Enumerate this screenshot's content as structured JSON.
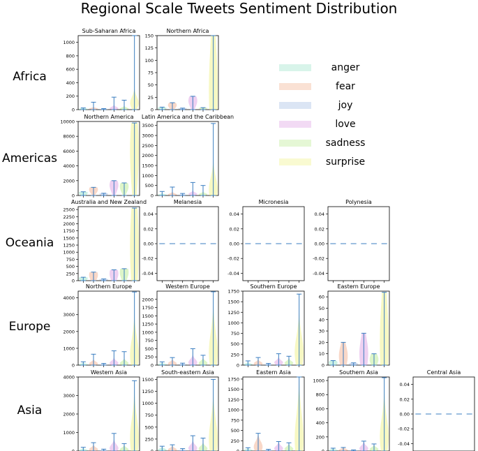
{
  "title": "Regional Scale Tweets Sentiment Distribution",
  "legend": {
    "items": [
      {
        "label": "anger",
        "color": "#8fe0c4"
      },
      {
        "label": "fear",
        "color": "#f2a985"
      },
      {
        "label": "joy",
        "color": "#99b4df"
      },
      {
        "label": "love",
        "color": "#d996e0"
      },
      {
        "label": "sadness",
        "color": "#b4e886"
      },
      {
        "label": "surprise",
        "color": "#eef07a"
      }
    ]
  },
  "row_labels": [
    "Africa",
    "Americas",
    "Oceania",
    "Europe",
    "Asia"
  ],
  "colors": {
    "whisker": "#3a7dc0",
    "violins": [
      "#8fe0c4",
      "#f2a985",
      "#99b4df",
      "#d996e0",
      "#b4e886",
      "#eef07a"
    ]
  },
  "chart_data": [
    {
      "type": "violin",
      "row": 0,
      "col": 0,
      "title": "Sub-Saharan Africa",
      "ylim": [
        0,
        1100
      ],
      "yticks": [
        0,
        200,
        400,
        600,
        800,
        1000
      ],
      "series": [
        "anger",
        "fear",
        "joy",
        "love",
        "sadness",
        "surprise"
      ],
      "max": [
        25,
        110,
        15,
        185,
        140,
        1100
      ],
      "median": [
        3,
        15,
        3,
        20,
        15,
        100
      ],
      "spread": [
        25,
        15,
        8,
        30,
        25,
        130
      ]
    },
    {
      "type": "violin",
      "row": 0,
      "col": 1,
      "title": "Northern Africa",
      "ylim": [
        0,
        150
      ],
      "yticks": [
        0,
        25,
        50,
        75,
        100,
        125,
        150
      ],
      "series": [
        "anger",
        "fear",
        "joy",
        "love",
        "sadness",
        "surprise"
      ],
      "max": [
        5,
        14,
        3,
        27,
        4,
        150
      ],
      "median": [
        3,
        9,
        2,
        18,
        3,
        40
      ],
      "spread": [
        4,
        10,
        2,
        20,
        3,
        150
      ]
    },
    {
      "type": "violin",
      "row": 1,
      "col": 0,
      "title": "Northern America",
      "ylim": [
        0,
        10000
      ],
      "yticks": [
        0,
        2000,
        4000,
        6000,
        8000,
        10000
      ],
      "series": [
        "anger",
        "fear",
        "joy",
        "love",
        "sadness",
        "surprise"
      ],
      "max": [
        500,
        1100,
        300,
        2000,
        1700,
        9800
      ],
      "median": [
        350,
        800,
        200,
        1400,
        1200,
        6000
      ],
      "spread": [
        500,
        800,
        250,
        1400,
        1200,
        8000
      ]
    },
    {
      "type": "violin",
      "row": 1,
      "col": 1,
      "title": "Latin America and the Caribbean",
      "ylim": [
        0,
        3700
      ],
      "yticks": [
        0,
        500,
        1000,
        1500,
        2000,
        2500,
        3000,
        3500
      ],
      "series": [
        "anger",
        "fear",
        "joy",
        "love",
        "sadness",
        "surprise"
      ],
      "max": [
        200,
        420,
        100,
        650,
        500,
        3600
      ],
      "median": [
        30,
        50,
        20,
        80,
        60,
        300
      ],
      "spread": [
        60,
        80,
        40,
        100,
        80,
        900
      ]
    },
    {
      "type": "violin",
      "row": 2,
      "col": 0,
      "title": "Australia and New Zealand",
      "ylim": [
        0,
        2600
      ],
      "yticks": [
        0,
        250,
        500,
        750,
        1000,
        1250,
        1500,
        1750,
        2000,
        2250,
        2500
      ],
      "series": [
        "anger",
        "fear",
        "joy",
        "love",
        "sadness",
        "surprise"
      ],
      "max": [
        120,
        300,
        60,
        380,
        420,
        2550
      ],
      "median": [
        80,
        200,
        40,
        250,
        300,
        1200
      ],
      "spread": [
        120,
        300,
        50,
        380,
        400,
        2400
      ]
    },
    {
      "type": "violin",
      "row": 2,
      "col": 1,
      "title": "Melanesia",
      "ylim": [
        -0.05,
        0.05
      ],
      "yticks": [
        -0.04,
        -0.02,
        0.0,
        0.02,
        0.04
      ],
      "series": [],
      "flat_value": 0.0
    },
    {
      "type": "violin",
      "row": 2,
      "col": 2,
      "title": "Micronesia",
      "ylim": [
        -0.05,
        0.05
      ],
      "yticks": [
        -0.04,
        -0.02,
        0.0,
        0.02,
        0.04
      ],
      "series": [],
      "flat_value": 0.0
    },
    {
      "type": "violin",
      "row": 2,
      "col": 3,
      "title": "Polynesia",
      "ylim": [
        -0.05,
        0.05
      ],
      "yticks": [
        -0.04,
        -0.02,
        0.0,
        0.02,
        0.04
      ],
      "series": [],
      "flat_value": 0.0
    },
    {
      "type": "violin",
      "row": 3,
      "col": 0,
      "title": "Northern Europe",
      "ylim": [
        0,
        4400
      ],
      "yticks": [
        0,
        1000,
        2000,
        3000,
        4000
      ],
      "series": [
        "anger",
        "fear",
        "joy",
        "love",
        "sadness",
        "surprise"
      ],
      "max": [
        200,
        650,
        100,
        850,
        800,
        4350
      ],
      "median": [
        40,
        100,
        20,
        120,
        110,
        600
      ],
      "spread": [
        80,
        150,
        40,
        200,
        180,
        1500
      ]
    },
    {
      "type": "violin",
      "row": 3,
      "col": 1,
      "title": "Western Europe",
      "ylim": [
        0,
        2250
      ],
      "yticks": [
        0,
        250,
        500,
        750,
        1000,
        1250,
        1500,
        1750,
        2000
      ],
      "series": [
        "anger",
        "fear",
        "joy",
        "love",
        "sadness",
        "surprise"
      ],
      "max": [
        100,
        230,
        60,
        500,
        300,
        2230
      ],
      "median": [
        20,
        50,
        15,
        80,
        60,
        400
      ],
      "spread": [
        40,
        80,
        20,
        150,
        100,
        900
      ]
    },
    {
      "type": "violin",
      "row": 3,
      "col": 2,
      "title": "Southern Europe",
      "ylim": [
        0,
        1750
      ],
      "yticks": [
        0,
        250,
        500,
        750,
        1000,
        1250,
        1500,
        1750
      ],
      "series": [
        "anger",
        "fear",
        "joy",
        "love",
        "sadness",
        "surprise"
      ],
      "max": [
        100,
        180,
        40,
        270,
        210,
        1680
      ],
      "median": [
        20,
        40,
        10,
        60,
        50,
        300
      ],
      "spread": [
        30,
        60,
        15,
        80,
        70,
        600
      ]
    },
    {
      "type": "violin",
      "row": 3,
      "col": 3,
      "title": "Eastern Europe",
      "ylim": [
        0,
        65
      ],
      "yticks": [
        0,
        10,
        20,
        30,
        40,
        50,
        60
      ],
      "series": [
        "anger",
        "fear",
        "joy",
        "love",
        "sadness",
        "surprise"
      ],
      "max": [
        4,
        20,
        2,
        28,
        10,
        64
      ],
      "median": [
        2,
        8,
        1,
        10,
        5,
        20
      ],
      "spread": [
        4,
        15,
        2,
        22,
        8,
        60
      ]
    },
    {
      "type": "violin",
      "row": 4,
      "col": 0,
      "title": "Western Asia",
      "ylim": [
        0,
        4000
      ],
      "yticks": [
        0,
        1000,
        2000,
        3000,
        4000
      ],
      "series": [
        "anger",
        "fear",
        "joy",
        "love",
        "sadness",
        "surprise"
      ],
      "max": [
        200,
        450,
        100,
        950,
        400,
        3800
      ],
      "median": [
        40,
        90,
        20,
        150,
        80,
        700
      ],
      "spread": [
        80,
        150,
        40,
        300,
        150,
        1600
      ]
    },
    {
      "type": "violin",
      "row": 4,
      "col": 1,
      "title": "South-eastern Asia",
      "ylim": [
        0,
        1550
      ],
      "yticks": [
        0,
        250,
        500,
        750,
        1000,
        1250,
        1500
      ],
      "series": [
        "anger",
        "fear",
        "joy",
        "love",
        "sadness",
        "surprise"
      ],
      "max": [
        100,
        130,
        50,
        320,
        270,
        1500
      ],
      "median": [
        25,
        30,
        10,
        60,
        50,
        250
      ],
      "spread": [
        40,
        50,
        20,
        100,
        80,
        600
      ]
    },
    {
      "type": "violin",
      "row": 4,
      "col": 2,
      "title": "Eastern Asia",
      "ylim": [
        0,
        1800
      ],
      "yticks": [
        0,
        250,
        500,
        750,
        1000,
        1250,
        1500,
        1750
      ],
      "series": [
        "anger",
        "fear",
        "joy",
        "love",
        "sadness",
        "surprise"
      ],
      "max": [
        80,
        430,
        40,
        230,
        200,
        1800
      ],
      "median": [
        20,
        100,
        10,
        60,
        50,
        300
      ],
      "spread": [
        30,
        200,
        20,
        100,
        80,
        900
      ]
    },
    {
      "type": "violin",
      "row": 4,
      "col": 3,
      "title": "Southern Asia",
      "ylim": [
        0,
        1050
      ],
      "yticks": [
        0,
        200,
        400,
        600,
        800,
        1000
      ],
      "series": [
        "anger",
        "fear",
        "joy",
        "love",
        "sadness",
        "surprise"
      ],
      "max": [
        40,
        50,
        15,
        140,
        100,
        1040
      ],
      "median": [
        10,
        15,
        5,
        35,
        25,
        200
      ],
      "spread": [
        20,
        25,
        8,
        60,
        40,
        400
      ]
    },
    {
      "type": "violin",
      "row": 4,
      "col": 4,
      "title": "Central Asia",
      "ylim": [
        -0.05,
        0.05
      ],
      "yticks": [
        -0.04,
        -0.02,
        0.0,
        0.02,
        0.04
      ],
      "series": [],
      "flat_value": 0.0
    }
  ]
}
